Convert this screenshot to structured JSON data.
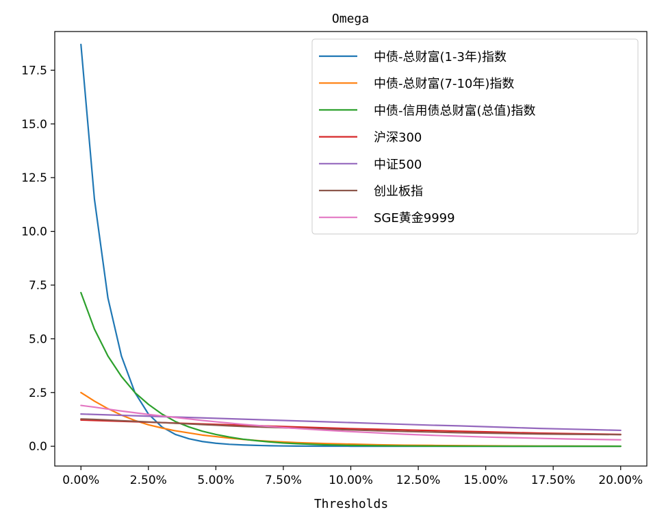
{
  "chart_data": {
    "type": "line",
    "title": "Omega",
    "xlabel": "Thresholds",
    "ylabel": "",
    "xlim": [
      -0.0097,
      0.2097
    ],
    "ylim": [
      -0.92,
      19.3
    ],
    "x_ticks": [
      0,
      0.025,
      0.05,
      0.075,
      0.1,
      0.125,
      0.15,
      0.175,
      0.2
    ],
    "x_tick_labels": [
      "0.00%",
      "2.50%",
      "5.00%",
      "7.50%",
      "10.00%",
      "12.50%",
      "15.00%",
      "17.50%",
      "20.00%"
    ],
    "y_ticks": [
      0,
      2.5,
      5,
      7.5,
      10,
      12.5,
      15,
      17.5
    ],
    "y_tick_labels": [
      "0.0",
      "2.5",
      "5.0",
      "7.5",
      "10.0",
      "12.5",
      "15.0",
      "17.5"
    ],
    "grid": false,
    "legend_position": "top-right",
    "x": [
      0,
      0.005,
      0.01,
      0.015,
      0.02,
      0.025,
      0.03,
      0.035,
      0.04,
      0.045,
      0.05,
      0.055,
      0.06,
      0.065,
      0.07,
      0.075,
      0.08,
      0.09,
      0.1,
      0.11,
      0.12,
      0.13,
      0.14,
      0.15,
      0.16,
      0.17,
      0.18,
      0.19,
      0.2
    ],
    "series": [
      {
        "name": "中债-总财富(1-3年)指数",
        "color": "#1f77b4",
        "values": [
          18.7,
          11.5,
          6.9,
          4.2,
          2.5,
          1.5,
          0.9,
          0.55,
          0.35,
          0.22,
          0.14,
          0.09,
          0.06,
          0.04,
          0.025,
          0.015,
          0.01,
          0.005,
          0.002,
          0.001,
          0,
          0,
          0,
          0,
          0,
          0,
          0,
          0,
          0
        ]
      },
      {
        "name": "中债-总财富(7-10年)指数",
        "color": "#ff7f0e",
        "values": [
          2.5,
          2.1,
          1.75,
          1.45,
          1.2,
          1.0,
          0.85,
          0.72,
          0.62,
          0.52,
          0.45,
          0.38,
          0.32,
          0.27,
          0.23,
          0.2,
          0.17,
          0.13,
          0.1,
          0.07,
          0.05,
          0.04,
          0.03,
          0.02,
          0.015,
          0.01,
          0.008,
          0.005,
          0.003
        ]
      },
      {
        "name": "中债-信用债总财富(总值)指数",
        "color": "#2ca02c",
        "values": [
          7.15,
          5.45,
          4.2,
          3.25,
          2.5,
          1.95,
          1.5,
          1.15,
          0.9,
          0.7,
          0.55,
          0.43,
          0.33,
          0.26,
          0.2,
          0.15,
          0.12,
          0.07,
          0.04,
          0.025,
          0.015,
          0.01,
          0.005,
          0.003,
          0.002,
          0.001,
          0,
          0,
          0
        ]
      },
      {
        "name": "沪深300",
        "color": "#d62728",
        "values": [
          1.22,
          1.2,
          1.18,
          1.16,
          1.14,
          1.12,
          1.1,
          1.08,
          1.06,
          1.04,
          1.02,
          1.0,
          0.98,
          0.96,
          0.94,
          0.92,
          0.9,
          0.86,
          0.82,
          0.79,
          0.76,
          0.73,
          0.7,
          0.67,
          0.64,
          0.61,
          0.59,
          0.57,
          0.55
        ]
      },
      {
        "name": "中证500",
        "color": "#9467bd",
        "values": [
          1.5,
          1.48,
          1.46,
          1.44,
          1.42,
          1.4,
          1.38,
          1.36,
          1.34,
          1.32,
          1.3,
          1.28,
          1.26,
          1.24,
          1.22,
          1.2,
          1.18,
          1.14,
          1.1,
          1.06,
          1.02,
          0.98,
          0.95,
          0.91,
          0.87,
          0.83,
          0.8,
          0.77,
          0.74
        ]
      },
      {
        "name": "创业板指",
        "color": "#8c564b",
        "values": [
          1.27,
          1.25,
          1.22,
          1.19,
          1.16,
          1.13,
          1.1,
          1.07,
          1.04,
          1.01,
          0.98,
          0.95,
          0.92,
          0.9,
          0.88,
          0.86,
          0.84,
          0.8,
          0.76,
          0.72,
          0.69,
          0.66,
          0.63,
          0.61,
          0.59,
          0.57,
          0.56,
          0.55,
          0.54
        ]
      },
      {
        "name": "SGE黄金9999",
        "color": "#e377c2",
        "values": [
          1.9,
          1.82,
          1.73,
          1.64,
          1.56,
          1.48,
          1.41,
          1.34,
          1.27,
          1.2,
          1.14,
          1.08,
          1.02,
          0.97,
          0.92,
          0.87,
          0.83,
          0.75,
          0.68,
          0.62,
          0.56,
          0.51,
          0.47,
          0.43,
          0.4,
          0.37,
          0.34,
          0.32,
          0.3
        ]
      }
    ]
  }
}
